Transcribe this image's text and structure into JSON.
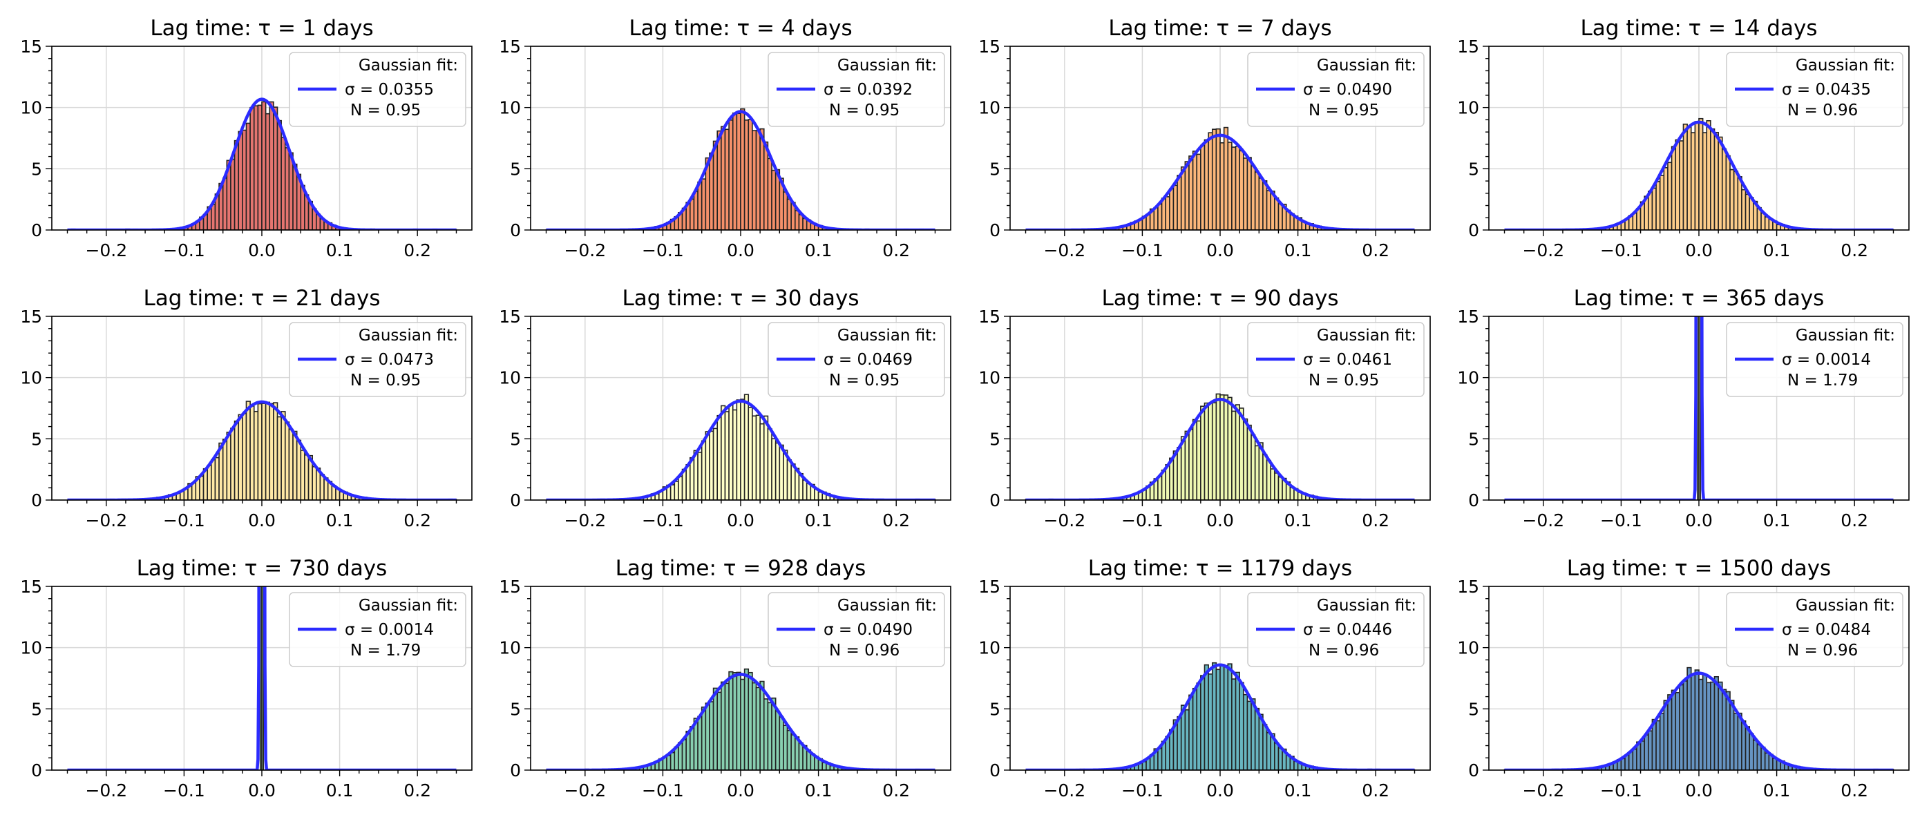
{
  "figure": {
    "background": "#ffffff",
    "grid": true,
    "legend_position": "upper right"
  },
  "chart_data": [
    {
      "type": "histogram",
      "title": "Lag time: τ = 1 days",
      "tau": 1,
      "fill_color": "#e57570",
      "sigma": 0.0355,
      "N": 0.95,
      "xlim": [
        -0.27,
        0.27
      ],
      "ylim": [
        0,
        15
      ],
      "xticks": [
        "−0.2",
        "−0.1",
        "0.0",
        "0.1",
        "0.2"
      ],
      "yticks": [
        "0",
        "5",
        "10",
        "15"
      ],
      "legend": {
        "header": "Gaussian fit:",
        "sigma_label": "σ = 0.0355",
        "n_label": "N = 0.95"
      }
    },
    {
      "type": "histogram",
      "title": "Lag time: τ = 4 days",
      "tau": 4,
      "fill_color": "#f5906a",
      "sigma": 0.0392,
      "N": 0.95,
      "xlim": [
        -0.27,
        0.27
      ],
      "ylim": [
        0,
        15
      ],
      "xticks": [
        "−0.2",
        "−0.1",
        "0.0",
        "0.1",
        "0.2"
      ],
      "yticks": [
        "0",
        "5",
        "10",
        "15"
      ],
      "legend": {
        "header": "Gaussian fit:",
        "sigma_label": "σ = 0.0392",
        "n_label": "N = 0.95"
      }
    },
    {
      "type": "histogram",
      "title": "Lag time: τ = 7 days",
      "tau": 7,
      "fill_color": "#fbb67a",
      "sigma": 0.049,
      "N": 0.95,
      "xlim": [
        -0.27,
        0.27
      ],
      "ylim": [
        0,
        15
      ],
      "xticks": [
        "−0.2",
        "−0.1",
        "0.0",
        "0.1",
        "0.2"
      ],
      "yticks": [
        "0",
        "5",
        "10",
        "15"
      ],
      "legend": {
        "header": "Gaussian fit:",
        "sigma_label": "σ = 0.0490",
        "n_label": "N = 0.95"
      }
    },
    {
      "type": "histogram",
      "title": "Lag time: τ = 14 days",
      "tau": 14,
      "fill_color": "#fdcd8a",
      "sigma": 0.0435,
      "N": 0.96,
      "xlim": [
        -0.27,
        0.27
      ],
      "ylim": [
        0,
        15
      ],
      "xticks": [
        "−0.2",
        "−0.1",
        "0.0",
        "0.1",
        "0.2"
      ],
      "yticks": [
        "0",
        "5",
        "10",
        "15"
      ],
      "legend": {
        "header": "Gaussian fit:",
        "sigma_label": "σ = 0.0435",
        "n_label": "N = 0.96"
      }
    },
    {
      "type": "histogram",
      "title": "Lag time: τ = 21 days",
      "tau": 21,
      "fill_color": "#fee8a6",
      "sigma": 0.0473,
      "N": 0.95,
      "xlim": [
        -0.27,
        0.27
      ],
      "ylim": [
        0,
        15
      ],
      "xticks": [
        "−0.2",
        "−0.1",
        "0.0",
        "0.1",
        "0.2"
      ],
      "yticks": [
        "0",
        "5",
        "10",
        "15"
      ],
      "legend": {
        "header": "Gaussian fit:",
        "sigma_label": "σ = 0.0473",
        "n_label": "N = 0.95"
      }
    },
    {
      "type": "histogram",
      "title": "Lag time: τ = 30 days",
      "tau": 30,
      "fill_color": "#feffc8",
      "sigma": 0.0469,
      "N": 0.95,
      "xlim": [
        -0.27,
        0.27
      ],
      "ylim": [
        0,
        15
      ],
      "xticks": [
        "−0.2",
        "−0.1",
        "0.0",
        "0.1",
        "0.2"
      ],
      "yticks": [
        "0",
        "5",
        "10",
        "15"
      ],
      "legend": {
        "header": "Gaussian fit:",
        "sigma_label": "σ = 0.0469",
        "n_label": "N = 0.95"
      }
    },
    {
      "type": "histogram",
      "title": "Lag time: τ = 90 days",
      "tau": 90,
      "fill_color": "#eef8b2",
      "sigma": 0.0461,
      "N": 0.95,
      "xlim": [
        -0.27,
        0.27
      ],
      "ylim": [
        0,
        15
      ],
      "xticks": [
        "−0.2",
        "−0.1",
        "0.0",
        "0.1",
        "0.2"
      ],
      "yticks": [
        "0",
        "5",
        "10",
        "15"
      ],
      "legend": {
        "header": "Gaussian fit:",
        "sigma_label": "σ = 0.0461",
        "n_label": "N = 0.95"
      }
    },
    {
      "type": "histogram",
      "title": "Lag time: τ = 365 days",
      "tau": 365,
      "fill_color": "#d3eda0",
      "sigma": 0.0014,
      "N": 1.79,
      "xlim": [
        -0.27,
        0.27
      ],
      "ylim": [
        0,
        15
      ],
      "xticks": [
        "−0.2",
        "−0.1",
        "0.0",
        "0.1",
        "0.2"
      ],
      "yticks": [
        "0",
        "5",
        "10",
        "15"
      ],
      "legend": {
        "header": "Gaussian fit:",
        "sigma_label": "σ = 0.0014",
        "n_label": "N = 1.79"
      }
    },
    {
      "type": "histogram",
      "title": "Lag time: τ = 730 days",
      "tau": 730,
      "fill_color": "#a6dba4",
      "sigma": 0.0014,
      "N": 1.79,
      "xlim": [
        -0.27,
        0.27
      ],
      "ylim": [
        0,
        15
      ],
      "xticks": [
        "−0.2",
        "−0.1",
        "0.0",
        "0.1",
        "0.2"
      ],
      "yticks": [
        "0",
        "5",
        "10",
        "15"
      ],
      "legend": {
        "header": "Gaussian fit:",
        "sigma_label": "σ = 0.0014",
        "n_label": "N = 1.79"
      }
    },
    {
      "type": "histogram",
      "title": "Lag time: τ = 928 days",
      "tau": 928,
      "fill_color": "#88cfb0",
      "sigma": 0.049,
      "N": 0.96,
      "xlim": [
        -0.27,
        0.27
      ],
      "ylim": [
        0,
        15
      ],
      "xticks": [
        "−0.2",
        "−0.1",
        "0.0",
        "0.1",
        "0.2"
      ],
      "yticks": [
        "0",
        "5",
        "10",
        "15"
      ],
      "legend": {
        "header": "Gaussian fit:",
        "sigma_label": "σ = 0.0490",
        "n_label": "N = 0.96"
      }
    },
    {
      "type": "histogram",
      "title": "Lag time: τ = 1179 days",
      "tau": 1179,
      "fill_color": "#68b5c0",
      "sigma": 0.0446,
      "N": 0.96,
      "xlim": [
        -0.27,
        0.27
      ],
      "ylim": [
        0,
        15
      ],
      "xticks": [
        "−0.2",
        "−0.1",
        "0.0",
        "0.1",
        "0.2"
      ],
      "yticks": [
        "0",
        "5",
        "10",
        "15"
      ],
      "legend": {
        "header": "Gaussian fit:",
        "sigma_label": "σ = 0.0446",
        "n_label": "N = 0.96"
      }
    },
    {
      "type": "histogram",
      "title": "Lag time: τ = 1500 days",
      "tau": 1500,
      "fill_color": "#6694c2",
      "sigma": 0.0484,
      "N": 0.96,
      "xlim": [
        -0.27,
        0.27
      ],
      "ylim": [
        0,
        15
      ],
      "xticks": [
        "−0.2",
        "−0.1",
        "0.0",
        "0.1",
        "0.2"
      ],
      "yticks": [
        "0",
        "5",
        "10",
        "15"
      ],
      "legend": {
        "header": "Gaussian fit:",
        "sigma_label": "σ = 0.0484",
        "n_label": "N = 0.96"
      }
    }
  ],
  "colors": {
    "fit_line": "#2b2bff",
    "hist_edge": "#222222",
    "grid": "#d9d9d9"
  }
}
